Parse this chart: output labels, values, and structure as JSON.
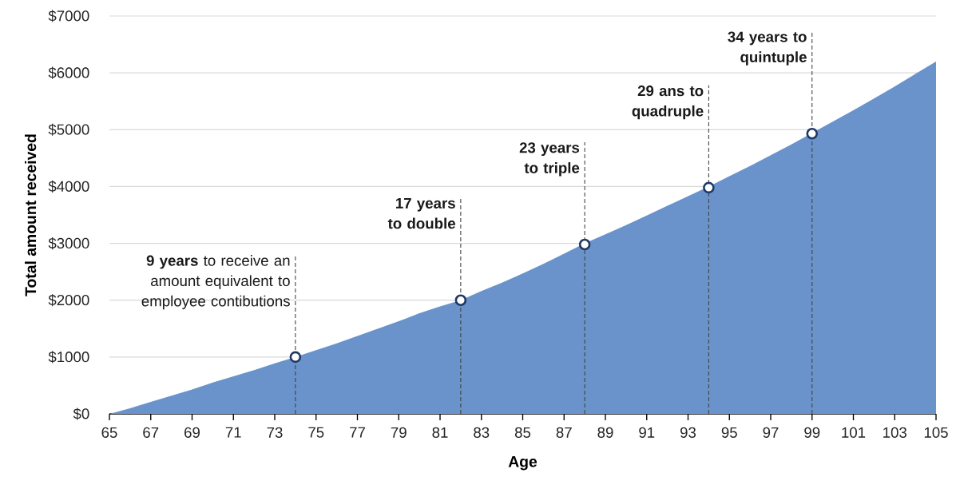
{
  "chart_data": {
    "type": "area",
    "xlabel": "Age",
    "ylabel": "Total amount received",
    "xlim": [
      65,
      105
    ],
    "xticks": [
      65,
      67,
      69,
      71,
      73,
      75,
      77,
      79,
      81,
      83,
      85,
      87,
      89,
      91,
      93,
      95,
      97,
      99,
      101,
      103,
      105
    ],
    "ylim": [
      0,
      7000
    ],
    "yticks": [
      {
        "value": 0,
        "label": "$0"
      },
      {
        "value": 1000,
        "label": "$1000"
      },
      {
        "value": 2000,
        "label": "$2000"
      },
      {
        "value": 3000,
        "label": "$3000"
      },
      {
        "value": 4000,
        "label": "$4000"
      },
      {
        "value": 5000,
        "label": "$5000"
      },
      {
        "value": 6000,
        "label": "$6000"
      },
      {
        "value": 7000,
        "label": "$7000"
      }
    ],
    "grid": "y",
    "series": [
      {
        "color": "#6a93cb",
        "x": [
          65,
          66,
          67,
          68,
          69,
          70,
          71,
          72,
          73,
          74,
          75,
          76,
          77,
          78,
          79,
          80,
          81,
          82,
          83,
          84,
          85,
          86,
          87,
          88,
          89,
          90,
          91,
          92,
          93,
          94,
          95,
          96,
          97,
          98,
          99,
          100,
          101,
          102,
          103,
          104,
          105
        ],
        "values": [
          0,
          100,
          210,
          320,
          430,
          550,
          660,
          770,
          890,
          1000,
          1120,
          1240,
          1370,
          1500,
          1630,
          1770,
          1890,
          2000,
          2160,
          2310,
          2470,
          2640,
          2820,
          3000,
          3160,
          3320,
          3490,
          3660,
          3830,
          4000,
          4180,
          4360,
          4550,
          4740,
          4940,
          5140,
          5340,
          5550,
          5760,
          5980,
          6200
        ]
      },
      {
        "type": "scatter",
        "color": "#1f3864",
        "marker": "circle",
        "x": [
          74,
          82,
          88,
          94,
          99
        ],
        "values": [
          1000,
          2000,
          2980,
          3980,
          4930
        ]
      }
    ],
    "ref_lines": [
      {
        "axis": "x",
        "value": 74,
        "label": "**9 years** to receive an amount equivalent to employee contibutions",
        "line_style": "dashed",
        "color": "#404040"
      },
      {
        "axis": "x",
        "value": 82,
        "label": "**17 years to double**",
        "line_style": "dashed",
        "color": "#404040"
      },
      {
        "axis": "x",
        "value": 88,
        "label": "**23 years to triple**",
        "line_style": "dashed",
        "color": "#404040"
      },
      {
        "axis": "x",
        "value": 94,
        "label": "**29 ans to quadruple**",
        "line_style": "dashed",
        "color": "#404040"
      },
      {
        "axis": "x",
        "value": 99,
        "label": "**34 years to quintuple**",
        "line_style": "dashed",
        "color": "#404040"
      }
    ]
  }
}
